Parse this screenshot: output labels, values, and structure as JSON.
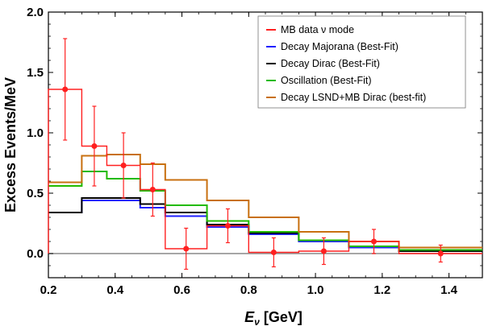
{
  "chart_data": {
    "type": "line",
    "xlabel": {
      "symbol": "E",
      "subscript": "ν",
      "unit": " [GeV]"
    },
    "ylabel": "Excess Events/MeV",
    "xlim": [
      0.2,
      1.5
    ],
    "ylim": [
      -0.2,
      2.0
    ],
    "x_ticks": [
      "0.2",
      "0.4",
      "0.6",
      "0.8",
      "1.0",
      "1.2",
      "1.4"
    ],
    "y_ticks": [
      "0.0",
      "0.5",
      "1.0",
      "1.5",
      "2.0"
    ],
    "bin_edges": [
      0.2,
      0.3,
      0.375,
      0.475,
      0.55,
      0.675,
      0.8,
      0.95,
      1.1,
      1.25,
      1.5
    ],
    "series": [
      {
        "name": "MB data ν mode",
        "color": "#ff2020",
        "kind": "data",
        "values": [
          1.36,
          0.89,
          0.73,
          0.53,
          0.04,
          0.23,
          0.01,
          0.02,
          0.1,
          0.0
        ],
        "x_points": [
          0.25,
          0.3375,
          0.425,
          0.5125,
          0.6125,
          0.7375,
          0.875,
          1.025,
          1.175,
          1.375
        ],
        "errors": [
          0.42,
          0.33,
          0.27,
          0.22,
          0.17,
          0.14,
          0.12,
          0.11,
          0.1,
          0.07
        ]
      },
      {
        "name": "Decay Majorana (Best-Fit)",
        "color": "#2020ff",
        "kind": "step",
        "values": [
          0.34,
          0.44,
          0.44,
          0.38,
          0.31,
          0.22,
          0.16,
          0.1,
          0.05,
          0.02
        ]
      },
      {
        "name": "Decay Dirac (Best-Fit)",
        "color": "#000000",
        "kind": "step",
        "values": [
          0.34,
          0.46,
          0.46,
          0.41,
          0.34,
          0.24,
          0.17,
          0.11,
          0.06,
          0.02
        ]
      },
      {
        "name": "Oscillation (Best-Fit)",
        "color": "#22bb00",
        "kind": "step",
        "values": [
          0.56,
          0.68,
          0.62,
          0.52,
          0.4,
          0.27,
          0.18,
          0.11,
          0.06,
          0.03
        ]
      },
      {
        "name": "Decay LSND+MB Dirac (best-fit)",
        "color": "#c87010",
        "kind": "step",
        "values": [
          0.59,
          0.81,
          0.82,
          0.74,
          0.61,
          0.44,
          0.3,
          0.18,
          0.1,
          0.05
        ]
      }
    ],
    "legend_position": "top-right",
    "zero_line": true
  }
}
